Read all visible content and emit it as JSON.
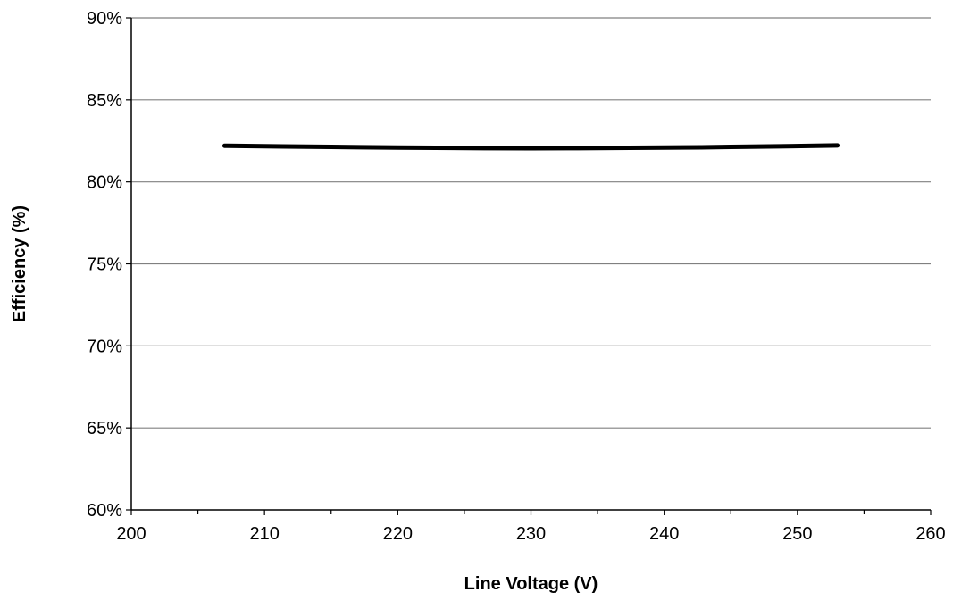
{
  "chart_data": {
    "type": "line",
    "title": "",
    "xlabel": "Line Voltage (V)",
    "ylabel": "Efficiency (%)",
    "xlim": [
      200,
      260
    ],
    "ylim": [
      0.6,
      0.9
    ],
    "x_ticks": [
      200,
      210,
      220,
      230,
      240,
      250,
      260
    ],
    "x_tick_labels": [
      "200",
      "210",
      "220",
      "230",
      "240",
      "250",
      "260"
    ],
    "x_minor_step": 5,
    "y_ticks": [
      0.6,
      0.65,
      0.7,
      0.75,
      0.8,
      0.85,
      0.9
    ],
    "y_tick_labels": [
      "60%",
      "65%",
      "70%",
      "75%",
      "80%",
      "85%",
      "90%"
    ],
    "grid": "horizontal",
    "legend": "none",
    "colors": {
      "line": "#000000",
      "grid": "#808080",
      "axis": "#000000"
    },
    "series": [
      {
        "x": [
          207,
          215,
          220,
          230,
          240,
          245,
          253
        ],
        "y": [
          0.822,
          0.8213,
          0.8209,
          0.8205,
          0.8209,
          0.8213,
          0.8222
        ]
      }
    ]
  }
}
